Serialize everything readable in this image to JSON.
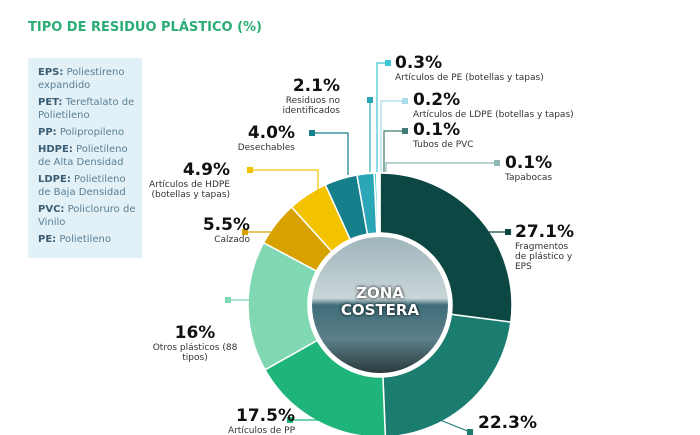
{
  "chart_data": {
    "type": "donut",
    "title": "TIPO DE RESIDUO PLÁSTICO (%)",
    "center_label": "ZONA COSTERA",
    "categories": [
      "Fragmentos de plástico y EPS",
      null,
      "Artículos de PP",
      "Otros plásticos (88 tipos)",
      "Calzado",
      "Artículos de HDPE (botellas y tapas)",
      "Desechables",
      "Residuos no identificados",
      "Artículos de PE (botellas y tapas)",
      "Artículos de LDPE (botellas y tapas)",
      "Tubos de PVC",
      "Tapabocas"
    ],
    "values": [
      27.1,
      22.3,
      17.5,
      16,
      5.5,
      4.9,
      4.0,
      2.1,
      0.3,
      0.2,
      0.1,
      0.1
    ],
    "value_labels": [
      "27.1%",
      "22.3%",
      "17.5%",
      "16%",
      "5.5%",
      "4.9%",
      "4.0%",
      "2.1%",
      "0.3%",
      "0.2%",
      "0.1%",
      "0.1%"
    ],
    "colors": [
      "#0c4744",
      "#1b7c70",
      "#1fb57a",
      "#7fd8b2",
      "#d7a200",
      "#f3c300",
      "#157f8c",
      "#2aa6b6",
      "#3cc4d4",
      "#a8dde8",
      "#3f7a72",
      "#8fb7b3"
    ],
    "legend": [
      {
        "abbr": "EPS:",
        "text": "Poliestireno expandido"
      },
      {
        "abbr": "PET:",
        "text": "Tereftalato de Polietileno"
      },
      {
        "abbr": "PP:",
        "text": "Polipropileno"
      },
      {
        "abbr": "HDPE:",
        "text": "Polietileno de Alta Densidad"
      },
      {
        "abbr": "LDPE:",
        "text": "Polietileno de Baja Densidad"
      },
      {
        "abbr": "PVC:",
        "text": "Policloruro de Vinilo"
      },
      {
        "abbr": "PE:",
        "text": "Polietileno"
      }
    ]
  }
}
